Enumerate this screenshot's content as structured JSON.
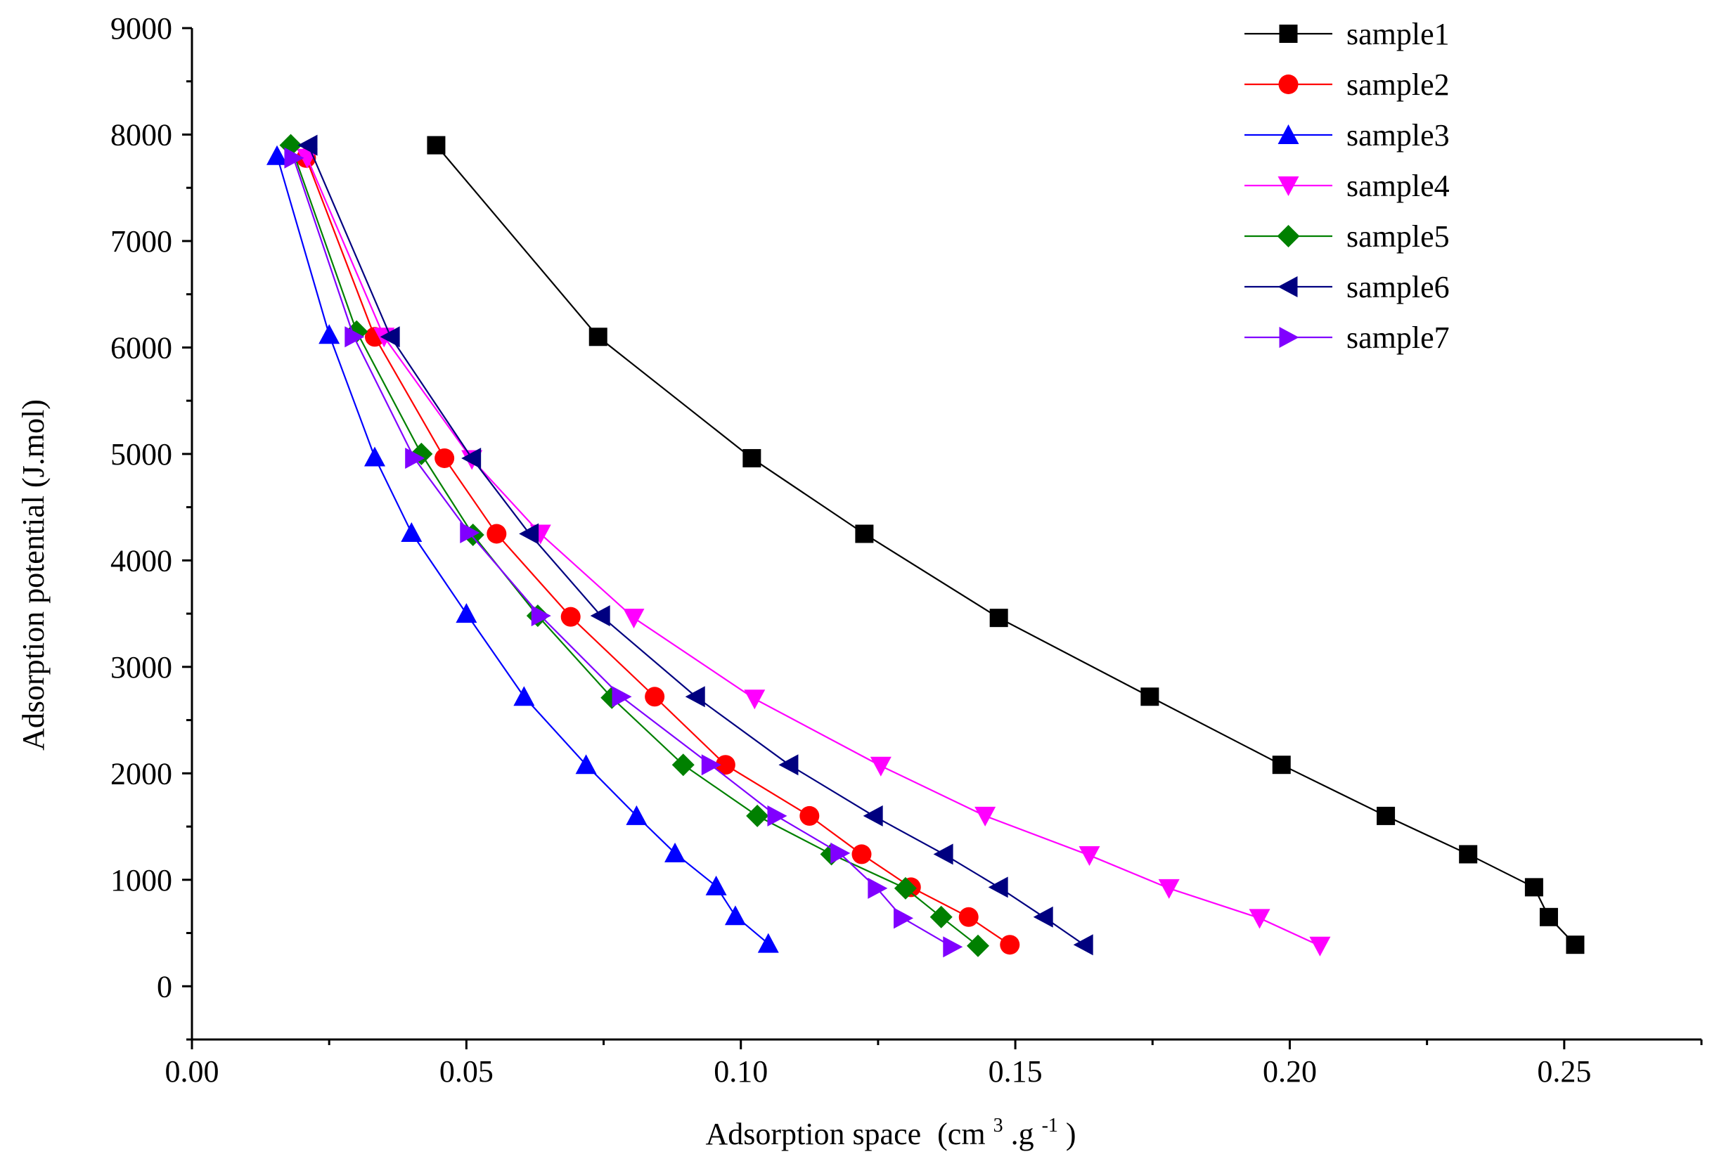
{
  "chart_data": {
    "type": "line",
    "title": "",
    "xlabel": "Adsorption space",
    "xlabel_units": {
      "prefix": "(cm",
      "sup1": "3",
      "mid": ".g",
      "sup2": "-1",
      "suffix": ")"
    },
    "ylabel": "Adsorption potential (J.mol)",
    "xlim": [
      0.0,
      0.275
    ],
    "ylim": [
      -500,
      9000
    ],
    "xticks": [
      0.0,
      0.05,
      0.1,
      0.15,
      0.2,
      0.25
    ],
    "xtick_labels": [
      "0.00",
      "0.05",
      "0.10",
      "0.15",
      "0.20",
      "0.25"
    ],
    "xminor": [
      0.025,
      0.075,
      0.125,
      0.175,
      0.225,
      0.275
    ],
    "yticks": [
      0,
      1000,
      2000,
      3000,
      4000,
      5000,
      6000,
      7000,
      8000,
      9000
    ],
    "ytick_labels": [
      "0",
      "1000",
      "2000",
      "3000",
      "4000",
      "5000",
      "6000",
      "7000",
      "8000",
      "9000"
    ],
    "yminor": [
      -500,
      500,
      1500,
      2500,
      3500,
      4500,
      5500,
      6500,
      7500,
      8500
    ],
    "legend_position": "top-right",
    "series": [
      {
        "name": "sample1",
        "color": "#000000",
        "marker": "square",
        "x": [
          0.0445,
          0.074,
          0.102,
          0.1225,
          0.147,
          0.1745,
          0.1985,
          0.2175,
          0.2325,
          0.2445,
          0.2472,
          0.252
        ],
        "y": [
          7900,
          6100,
          4960,
          4250,
          3460,
          2720,
          2080,
          1600,
          1240,
          930,
          650,
          390
        ]
      },
      {
        "name": "sample2",
        "color": "#ff0000",
        "marker": "circle",
        "x": [
          0.0208,
          0.0333,
          0.046,
          0.0555,
          0.069,
          0.0843,
          0.0972,
          0.1125,
          0.122,
          0.131,
          0.1415,
          0.149
        ],
        "y": [
          7780,
          6100,
          4960,
          4250,
          3470,
          2720,
          2080,
          1600,
          1240,
          930,
          650,
          390
        ]
      },
      {
        "name": "sample3",
        "color": "#0000ff",
        "marker": "triangle-up",
        "x": [
          0.0155,
          0.025,
          0.0333,
          0.04,
          0.05,
          0.0605,
          0.0718,
          0.081,
          0.088,
          0.0955,
          0.099,
          0.105
        ],
        "y": [
          7800,
          6120,
          4970,
          4260,
          3500,
          2720,
          2080,
          1600,
          1250,
          940,
          660,
          400
        ]
      },
      {
        "name": "sample4",
        "color": "#ff00ff",
        "marker": "triangle-down",
        "x": [
          0.021,
          0.035,
          0.051,
          0.0635,
          0.0805,
          0.1025,
          0.1255,
          0.1445,
          0.1635,
          0.178,
          0.1945,
          0.2055
        ],
        "y": [
          7780,
          6100,
          4950,
          4250,
          3460,
          2700,
          2070,
          1600,
          1230,
          920,
          640,
          380
        ]
      },
      {
        "name": "sample5",
        "color": "#008000",
        "marker": "diamond",
        "x": [
          0.018,
          0.03,
          0.0418,
          0.0512,
          0.063,
          0.0765,
          0.0895,
          0.103,
          0.1165,
          0.13,
          0.1365,
          0.1432
        ],
        "y": [
          7900,
          6150,
          5000,
          4240,
          3480,
          2710,
          2080,
          1600,
          1240,
          920,
          650,
          380
        ]
      },
      {
        "name": "sample6",
        "color": "#000080",
        "marker": "triangle-left",
        "x": [
          0.0212,
          0.0362,
          0.051,
          0.0615,
          0.0745,
          0.0918,
          0.1088,
          0.1242,
          0.137,
          0.147,
          0.1552,
          0.1625
        ],
        "y": [
          7900,
          6100,
          4960,
          4250,
          3480,
          2720,
          2080,
          1600,
          1240,
          930,
          650,
          390
        ]
      },
      {
        "name": "sample7",
        "color": "#8000ff",
        "marker": "triangle-right",
        "x": [
          0.0185,
          0.0295,
          0.0405,
          0.0505,
          0.0635,
          0.0782,
          0.0945,
          0.1065,
          0.118,
          0.1248,
          0.1295,
          0.1385
        ],
        "y": [
          7780,
          6100,
          4960,
          4260,
          3480,
          2720,
          2080,
          1600,
          1250,
          920,
          640,
          370
        ]
      }
    ]
  }
}
